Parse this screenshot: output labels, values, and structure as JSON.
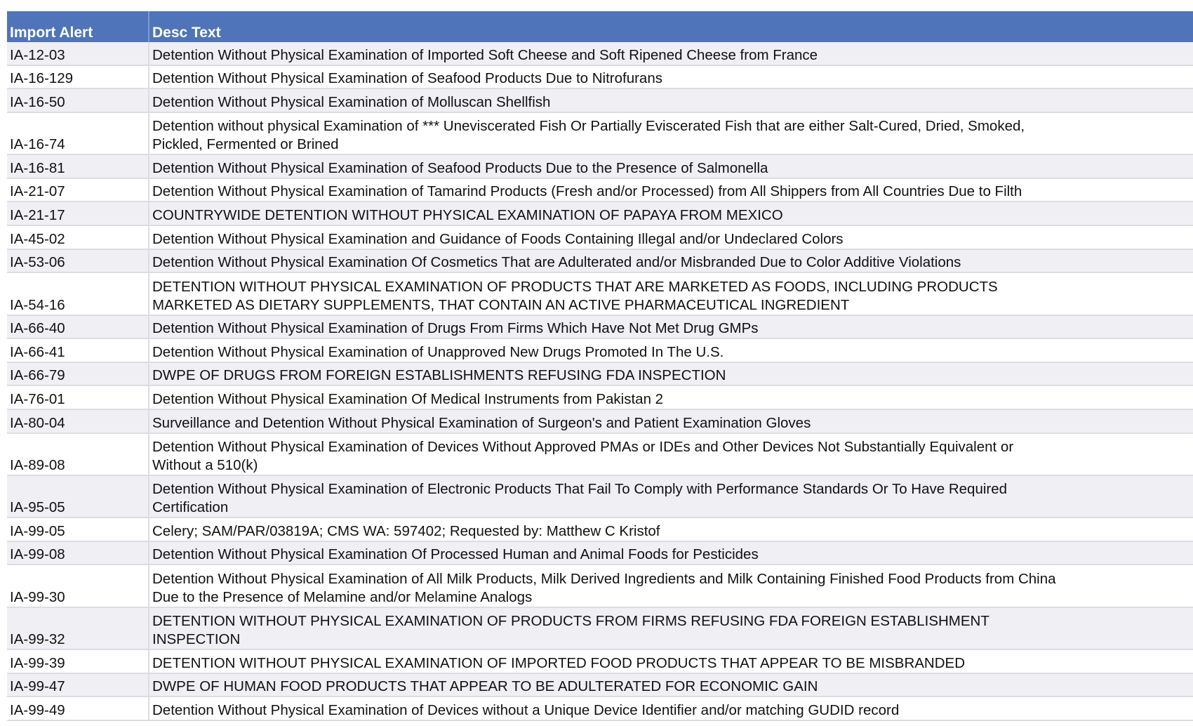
{
  "table": {
    "headers": [
      "Import Alert",
      "Desc Text"
    ],
    "header_color": "#5074b9",
    "rows": [
      {
        "id": "IA-12-03",
        "desc": "Detention Without Physical Examination of Imported Soft Cheese and Soft Ripened Cheese from France"
      },
      {
        "id": "IA-16-129",
        "desc": "Detention Without Physical Examination of Seafood Products Due to Nitrofurans"
      },
      {
        "id": "IA-16-50",
        "desc": "Detention Without Physical Examination of Molluscan Shellfish"
      },
      {
        "id": "IA-16-74",
        "desc": "Detention without physical Examination of *** Uneviscerated Fish Or Partially Eviscerated Fish that are either Salt-Cured, Dried, Smoked,\nPickled, Fermented or Brined"
      },
      {
        "id": "IA-16-81",
        "desc": "Detention Without Physical Examination of Seafood Products Due to the Presence of Salmonella"
      },
      {
        "id": "IA-21-07",
        "desc": "Detention Without Physical Examination of Tamarind Products (Fresh and/or Processed) from All Shippers from All Countries Due to Filth"
      },
      {
        "id": "IA-21-17",
        "desc": "COUNTRYWIDE DETENTION WITHOUT PHYSICAL EXAMINATION OF PAPAYA FROM MEXICO"
      },
      {
        "id": "IA-45-02",
        "desc": "Detention Without Physical Examination and Guidance of Foods Containing Illegal and/or Undeclared Colors"
      },
      {
        "id": "IA-53-06",
        "desc": "Detention Without Physical Examination Of Cosmetics That are Adulterated and/or Misbranded Due to Color Additive Violations"
      },
      {
        "id": "IA-54-16",
        "desc": "DETENTION WITHOUT PHYSICAL EXAMINATION OF PRODUCTS THAT ARE MARKETED AS FOODS, INCLUDING PRODUCTS\nMARKETED AS DIETARY SUPPLEMENTS, THAT CONTAIN AN ACTIVE PHARMACEUTICAL INGREDIENT"
      },
      {
        "id": "IA-66-40",
        "desc": "Detention  Without Physical Examination of Drugs From Firms Which Have Not Met Drug GMPs"
      },
      {
        "id": "IA-66-41",
        "desc": "Detention Without Physical Examination of Unapproved New Drugs Promoted In The U.S."
      },
      {
        "id": "IA-66-79",
        "desc": "DWPE OF DRUGS FROM FOREIGN ESTABLISHMENTS REFUSING FDA INSPECTION"
      },
      {
        "id": "IA-76-01",
        "desc": "Detention Without Physical Examination Of Medical Instruments from Pakistan 2"
      },
      {
        "id": "IA-80-04",
        "desc": "Surveillance and Detention Without Physical Examination of Surgeon's and Patient Examination Gloves"
      },
      {
        "id": "IA-89-08",
        "desc": "Detention Without Physical Examination of Devices Without Approved PMAs or IDEs and Other Devices Not Substantially Equivalent or\nWithout a 510(k)"
      },
      {
        "id": "IA-95-05",
        "desc": "Detention Without Physical Examination of Electronic Products That Fail To Comply with Performance Standards Or To Have Required\nCertification"
      },
      {
        "id": "IA-99-05",
        "desc": "Celery; SAM/PAR/03819A; CMS WA: 597402; Requested by: Matthew C Kristof"
      },
      {
        "id": "IA-99-08",
        "desc": "Detention Without Physical Examination Of Processed Human and Animal Foods for Pesticides"
      },
      {
        "id": "IA-99-30",
        "desc": "Detention Without Physical Examination of All Milk Products, Milk Derived Ingredients and Milk Containing Finished Food Products from China\nDue to the Presence of Melamine and/or Melamine Analogs"
      },
      {
        "id": "IA-99-32",
        "desc": "DETENTION WITHOUT PHYSICAL EXAMINATION OF PRODUCTS FROM FIRMS REFUSING FDA FOREIGN ESTABLISHMENT\nINSPECTION"
      },
      {
        "id": "IA-99-39",
        "desc": "DETENTION WITHOUT PHYSICAL EXAMINATION OF IMPORTED FOOD PRODUCTS THAT APPEAR TO BE MISBRANDED"
      },
      {
        "id": "IA-99-47",
        "desc": "DWPE OF HUMAN FOOD PRODUCTS THAT APPEAR TO BE ADULTERATED FOR ECONOMIC GAIN"
      },
      {
        "id": "IA-99-49",
        "desc": "Detention Without Physical Examination of Devices without a Unique Device Identifier and/or matching GUDID record"
      }
    ]
  }
}
